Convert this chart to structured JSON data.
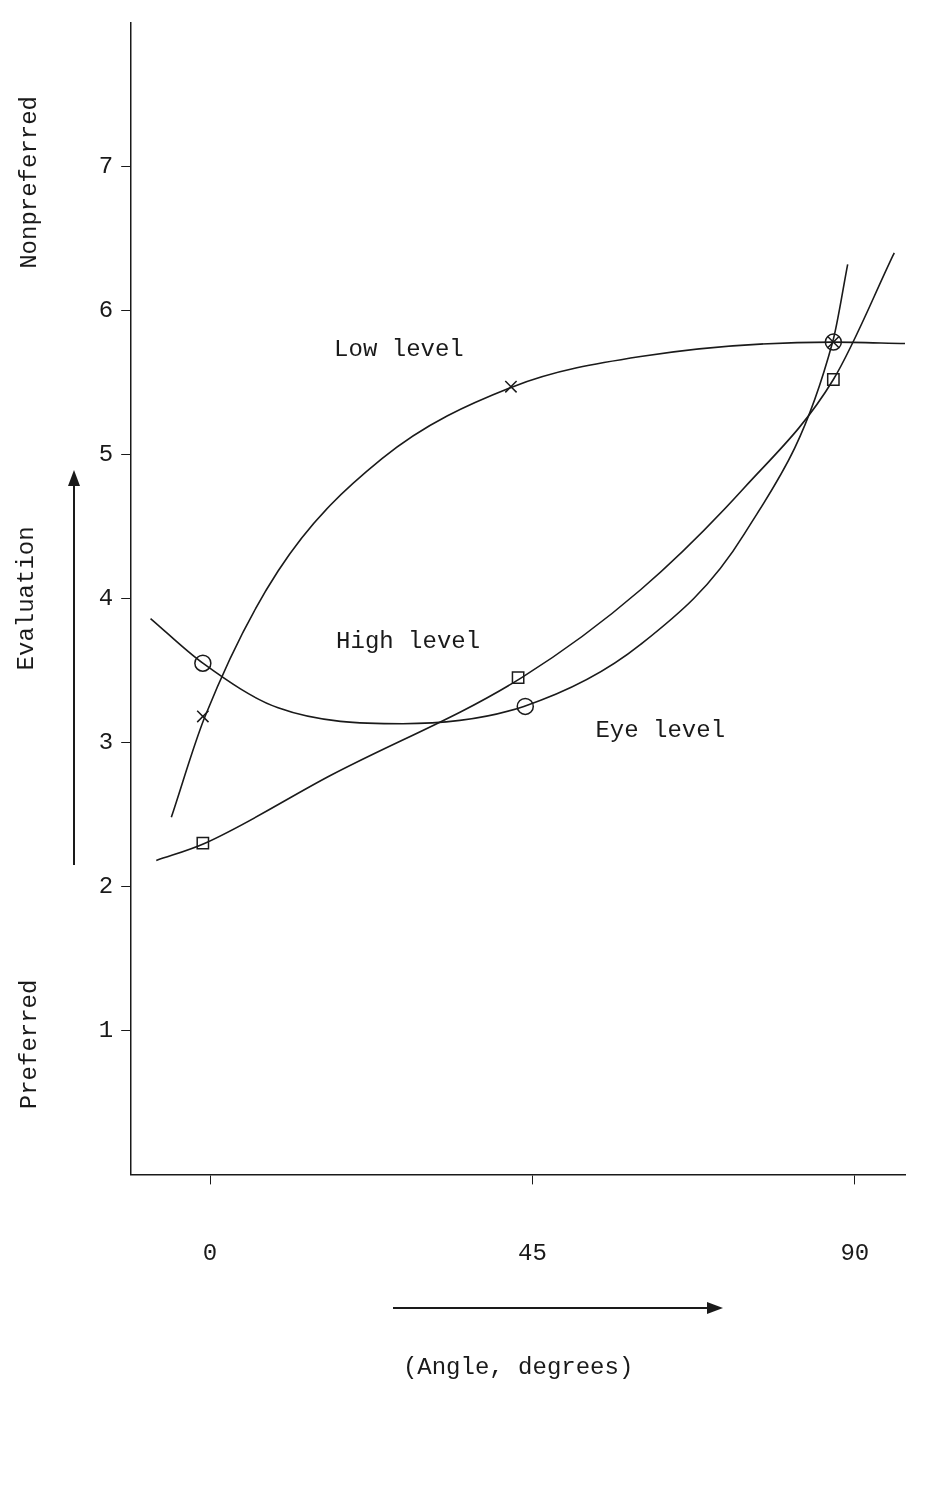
{
  "chart_data": {
    "type": "scatter",
    "xlabel": "(Angle, degrees)",
    "ylabel": "Evaluation",
    "annotations": [
      "Nonpreferred",
      "Preferred"
    ],
    "xlim": [
      -11,
      97
    ],
    "ylim": [
      0,
      8
    ],
    "xticks": [
      0,
      45,
      90
    ],
    "yticks": [
      1,
      2,
      3,
      4,
      5,
      6,
      7
    ],
    "grid": false,
    "series": [
      {
        "name": "Low level",
        "marker": "cross",
        "color": "#1a1a1a",
        "x": [
          -1,
          42,
          87
        ],
        "values": [
          3.18,
          5.47,
          5.78
        ]
      },
      {
        "name": "Eye level",
        "marker": "circle",
        "color": "#1a1a1a",
        "x": [
          -1,
          44,
          87
        ],
        "values": [
          3.55,
          3.25,
          5.78
        ]
      },
      {
        "name": "High level",
        "marker": "square",
        "color": "#1a1a1a",
        "x": [
          -1,
          43,
          87
        ],
        "values": [
          2.3,
          3.45,
          5.52
        ]
      },
      {
        "type": "line",
        "marker": "none",
        "color": "#1a1a1a",
        "x": [
          -5.4,
          -0.7,
          9.5,
          24,
          42.3,
          60.1,
          86.9,
          97
        ],
        "values": [
          2.48,
          3.18,
          4.19,
          4.97,
          5.47,
          5.68,
          5.78,
          5.77
        ]
      },
      {
        "type": "line",
        "marker": "none",
        "color": "#1a1a1a",
        "x": [
          -8.3,
          -1,
          9.5,
          26.9,
          43.8,
          60.1,
          74.6,
          86.9,
          89
        ],
        "values": [
          3.86,
          3.55,
          3.24,
          3.13,
          3.25,
          3.68,
          4.45,
          5.78,
          6.32
        ]
      },
      {
        "type": "line",
        "marker": "none",
        "color": "#1a1a1a",
        "x": [
          -7.5,
          -0.7,
          16.8,
          43.5,
          60.1,
          74.6,
          87,
          95.5
        ],
        "values": [
          2.18,
          2.3,
          2.77,
          3.45,
          4.06,
          4.77,
          5.52,
          6.4
        ]
      }
    ]
  }
}
